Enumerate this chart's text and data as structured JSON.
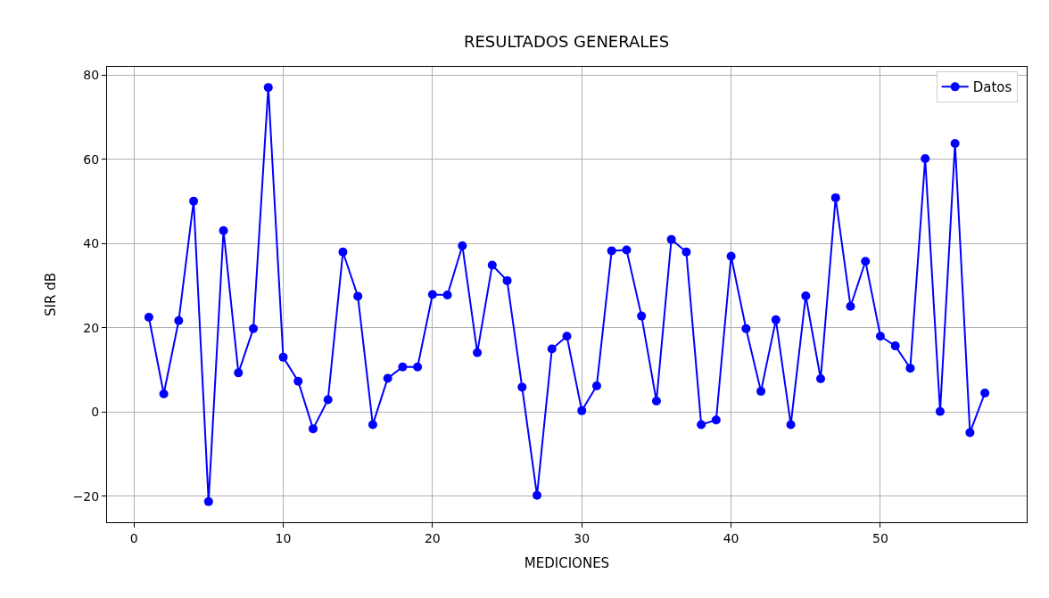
{
  "chart_data": {
    "type": "line",
    "title": "RESULTADOS GENERALES",
    "xlabel": "MEDICIONES",
    "ylabel": "SIR dB",
    "x": [
      1,
      2,
      3,
      4,
      5,
      6,
      7,
      8,
      9,
      10,
      11,
      12,
      13,
      14,
      15,
      16,
      17,
      18,
      19,
      20,
      21,
      22,
      23,
      24,
      25,
      26,
      27,
      28,
      29,
      30,
      31,
      32,
      33,
      34,
      35,
      36,
      37,
      38,
      39,
      40,
      41,
      42,
      43,
      44,
      45,
      46,
      47,
      48,
      49,
      50,
      51,
      52,
      53,
      54,
      55,
      56,
      57
    ],
    "series": [
      {
        "name": "Datos",
        "color": "#0000ff",
        "values": [
          22.5,
          4.3,
          21.7,
          50.1,
          -21.3,
          43.1,
          9.3,
          19.8,
          77.1,
          13,
          7.3,
          -4,
          2.9,
          38,
          27.5,
          -3,
          8,
          10.7,
          10.7,
          27.9,
          27.8,
          39.5,
          14.1,
          34.9,
          31.2,
          5.9,
          -19.8,
          15,
          18,
          0.3,
          6.2,
          38.3,
          38.5,
          22.8,
          2.6,
          41,
          38,
          -3,
          -1.9,
          37,
          19.8,
          4.9,
          21.9,
          -3,
          27.6,
          7.9,
          50.9,
          25.1,
          35.8,
          18,
          15.7,
          10.4,
          60.2,
          0.1,
          63.8,
          -4.9,
          4.5
        ]
      }
    ],
    "xlim": [
      -1.8,
      59.8
    ],
    "xticks": [
      0,
      10,
      20,
      30,
      40,
      50
    ],
    "ylim": [
      -26.2,
      82.0
    ],
    "yticks": [
      -20,
      0,
      20,
      40,
      60,
      80
    ],
    "grid": true,
    "legend": "top right",
    "marker": "circle",
    "line_style": "solid"
  }
}
